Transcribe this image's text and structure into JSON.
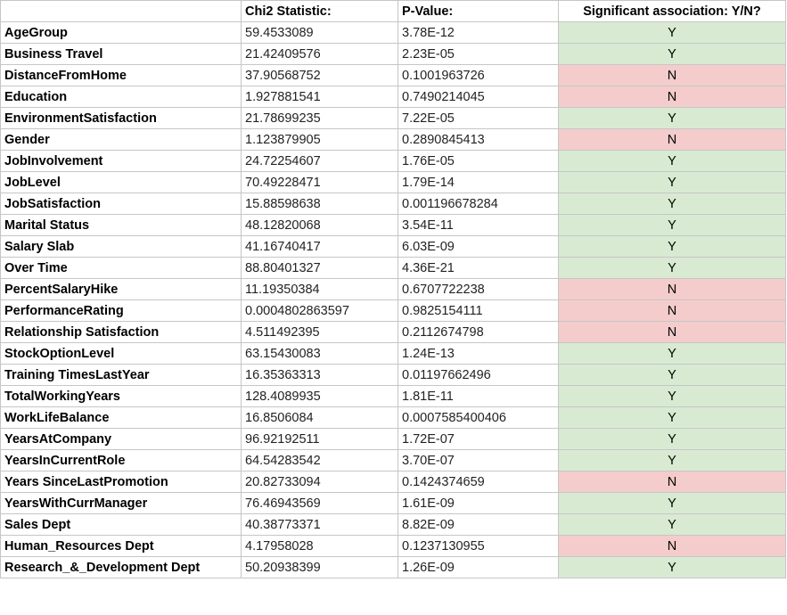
{
  "table": {
    "headers": [
      "",
      "Chi2 Statistic:",
      "P-Value:",
      "Significant association: Y/N?"
    ],
    "rows": [
      [
        "AgeGroup",
        "59.4533089",
        "3.78E-12",
        "Y"
      ],
      [
        "Business Travel",
        "21.42409576",
        "2.23E-05",
        "Y"
      ],
      [
        "DistanceFromHome",
        "37.90568752",
        "0.1001963726",
        "N"
      ],
      [
        "Education",
        "1.927881541",
        "0.7490214045",
        "N"
      ],
      [
        "EnvironmentSatisfaction",
        "21.78699235",
        "7.22E-05",
        "Y"
      ],
      [
        "Gender",
        "1.123879905",
        "0.2890845413",
        "N"
      ],
      [
        "JobInvolvement",
        "24.72254607",
        "1.76E-05",
        "Y"
      ],
      [
        "JobLevel",
        "70.49228471",
        "1.79E-14",
        "Y"
      ],
      [
        "JobSatisfaction",
        "15.88598638",
        "0.001196678284",
        "Y"
      ],
      [
        "Marital Status",
        "48.12820068",
        "3.54E-11",
        "Y"
      ],
      [
        "Salary Slab",
        "41.16740417",
        "6.03E-09",
        "Y"
      ],
      [
        "Over Time",
        "88.80401327",
        "4.36E-21",
        "Y"
      ],
      [
        "PercentSalaryHike",
        "11.19350384",
        "0.6707722238",
        "N"
      ],
      [
        "PerformanceRating",
        "0.0004802863597",
        "0.9825154111",
        "N"
      ],
      [
        "Relationship Satisfaction",
        "4.511492395",
        "0.2112674798",
        "N"
      ],
      [
        "StockOptionLevel",
        "63.15430083",
        "1.24E-13",
        "Y"
      ],
      [
        "Training TimesLastYear",
        "16.35363313",
        "0.01197662496",
        "Y"
      ],
      [
        "TotalWorkingYears",
        "128.4089935",
        "1.81E-11",
        "Y"
      ],
      [
        "WorkLifeBalance",
        "16.8506084",
        "0.0007585400406",
        "Y"
      ],
      [
        "YearsAtCompany",
        "96.92192511",
        "1.72E-07",
        "Y"
      ],
      [
        "YearsInCurrentRole",
        "64.54283542",
        "3.70E-07",
        "Y"
      ],
      [
        "Years SinceLastPromotion",
        "20.82733094",
        "0.1424374659",
        "N"
      ],
      [
        "YearsWithCurrManager",
        "76.46943569",
        "1.61E-09",
        "Y"
      ],
      [
        "Sales Dept",
        "40.38773371",
        "8.82E-09",
        "Y"
      ],
      [
        "Human_Resources Dept",
        "4.17958028",
        "0.1237130955",
        "N"
      ],
      [
        "Research_&_Development Dept",
        "50.20938399",
        "1.26E-09",
        "Y"
      ]
    ]
  },
  "colors": {
    "yes_fill": "#d9ead3",
    "no_fill": "#f4cccc",
    "grid": "#c6c6c6"
  }
}
